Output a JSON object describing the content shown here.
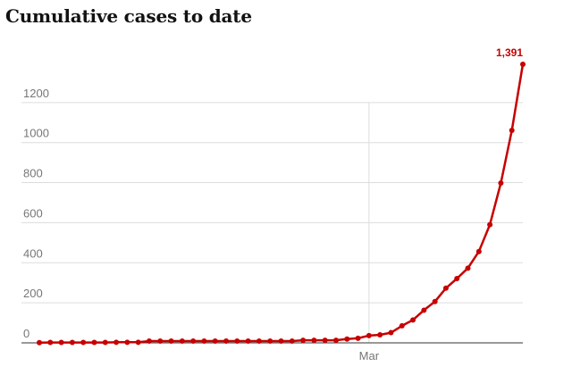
{
  "title": "Cumulative cases to date",
  "colors": {
    "series": "#c70000",
    "grid": "#dcdcdc",
    "axis": "#333333",
    "text": "#767676"
  },
  "chart_data": {
    "type": "line",
    "title": "Cumulative cases to date",
    "xlabel": "",
    "ylabel": "",
    "x_tick_labels": [
      {
        "index": 30,
        "label": "Mar"
      }
    ],
    "y_ticks": [
      0,
      200,
      400,
      600,
      800,
      1000,
      1200
    ],
    "ylim": [
      0,
      1391
    ],
    "grid": true,
    "series": [
      {
        "values": [
          1,
          2,
          2,
          2,
          2,
          2,
          2,
          3,
          3,
          3,
          9,
          9,
          9,
          9,
          9,
          9,
          9,
          9,
          9,
          9,
          9,
          9,
          9,
          9,
          13,
          13,
          13,
          13,
          19,
          23,
          36,
          40,
          51,
          85,
          114,
          163,
          206,
          273,
          321,
          373,
          456,
          590,
          798,
          1061,
          1391
        ],
        "end_label": "1,391"
      }
    ]
  }
}
